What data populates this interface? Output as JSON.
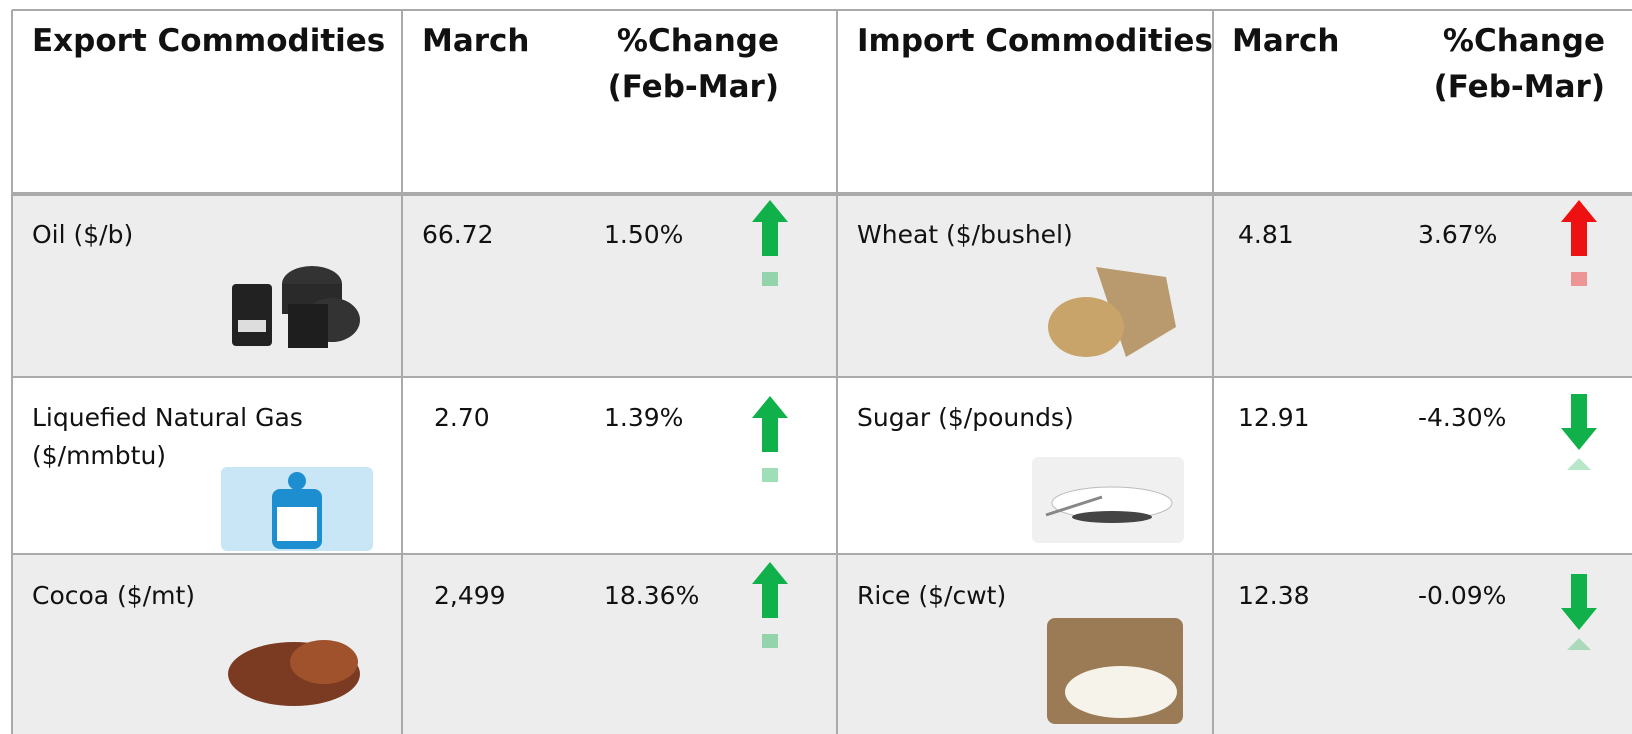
{
  "table": {
    "header": [
      "Export Commodities",
      "March",
      "%Change (Feb-Mar)",
      "Import Commodities",
      "March",
      "%Change (Feb-Mar)"
    ],
    "rows": [
      [
        "Oil ($/b)",
        "66.72",
        "1.50%",
        "Wheat ($/bushel)",
        "4.81",
        "3.67%"
      ],
      [
        "Liquefied Natural Gas ($/mmbtu)",
        "2.70",
        "1.39%",
        "Sugar ($/pounds)",
        "12.91",
        "-4.30%"
      ],
      [
        "Cocoa ($/mt)",
        "2,499",
        "18.36%",
        "Rice ($/cwt)",
        "12.38",
        "-0.09%"
      ]
    ]
  }
}
